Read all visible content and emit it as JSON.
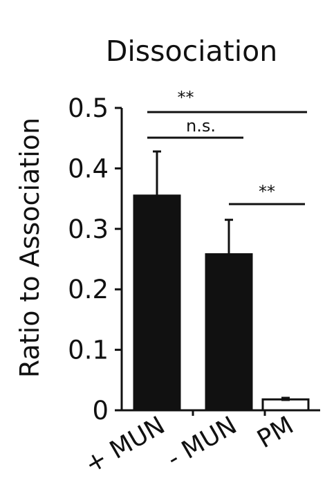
{
  "chart_data": {
    "type": "bar",
    "title": "Dissociation",
    "ylabel": "Ratio to Association",
    "xlabel": "",
    "ylim": [
      0,
      0.5
    ],
    "yticks": [
      0,
      0.1,
      0.2,
      0.3,
      0.4,
      0.5
    ],
    "ytick_labels": [
      "0",
      "0.1",
      "0.2",
      "0.3",
      "0.4",
      "0.5"
    ],
    "categories": [
      "+ MUN",
      "- MUN",
      "PM"
    ],
    "values": [
      0.355,
      0.258,
      0.018
    ],
    "errors": [
      0.073,
      0.057,
      0.002
    ],
    "bar_colors": [
      "#111111",
      "#111111",
      "#ffffff"
    ],
    "grid": false,
    "legend": "none",
    "significance": [
      {
        "from": "+ MUN",
        "to": "PM",
        "label": "**"
      },
      {
        "from": "+ MUN",
        "to": "- MUN",
        "label": "n.s."
      },
      {
        "from": "- MUN",
        "to": "PM",
        "label": "**"
      }
    ]
  }
}
